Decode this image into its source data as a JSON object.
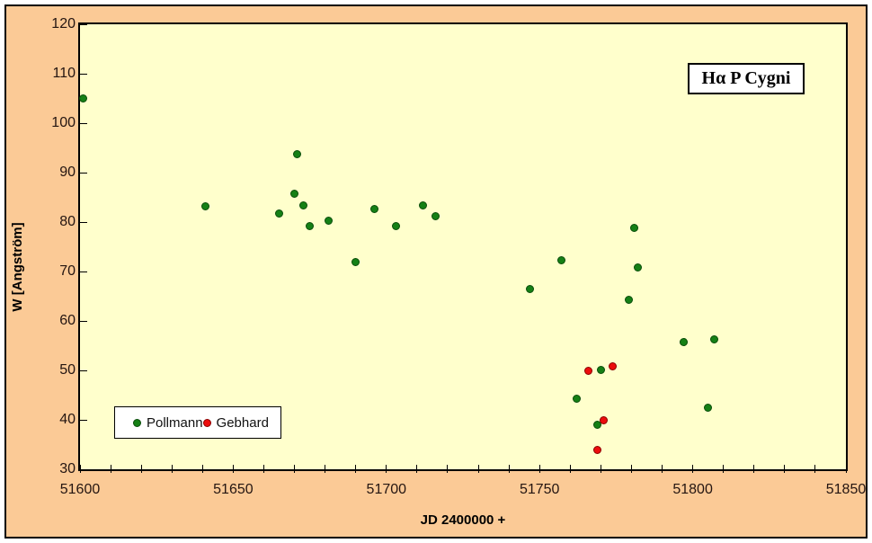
{
  "colors": {
    "page_background": "#FFFFFF",
    "chart_background": "#FBCA96",
    "plot_background": "#FFFFCC",
    "axis_text": "#241511",
    "pollmann_green": "#158015",
    "gebhard_red": "#EC0C0C"
  },
  "legend": {
    "entries": [
      {
        "label": "Pollmann",
        "color": "#158015"
      },
      {
        "label": "Gebhard",
        "color": "#EC0C0C"
      }
    ]
  },
  "chart_data": {
    "type": "scatter",
    "title": "Hα P Cygni",
    "xlabel": "JD 2400000 +",
    "ylabel": "W [Angström]",
    "xlim": [
      51600,
      51850
    ],
    "ylim": [
      30,
      120
    ],
    "x_major_ticks": [
      51600,
      51650,
      51700,
      51750,
      51800,
      51850
    ],
    "x_minor_tick_step": 10,
    "y_ticks": [
      30,
      40,
      50,
      60,
      70,
      80,
      90,
      100,
      110,
      120
    ],
    "grid": false,
    "legend_position": "inside bottom-left",
    "series": [
      {
        "name": "Pollmann",
        "color": "#158015",
        "marker_border": "#0A4D0A",
        "points": [
          [
            51601,
            105
          ],
          [
            51641,
            83.2
          ],
          [
            51665,
            81.8
          ],
          [
            51670,
            85.8
          ],
          [
            51671,
            93.7
          ],
          [
            51673,
            83.3
          ],
          [
            51675,
            79.1
          ],
          [
            51681,
            80.2
          ],
          [
            51690,
            72
          ],
          [
            51696,
            82.6
          ],
          [
            51703,
            79.1
          ],
          [
            51712,
            83.3
          ],
          [
            51716,
            81.2
          ],
          [
            51747,
            66.5
          ],
          [
            51757,
            72.2
          ],
          [
            51762,
            44.2
          ],
          [
            51769,
            39
          ],
          [
            51770,
            50.1
          ],
          [
            51779,
            64.3
          ],
          [
            51781,
            78.8
          ],
          [
            51782,
            70.9
          ],
          [
            51797,
            55.8
          ],
          [
            51805,
            42.4
          ],
          [
            51807,
            56.2
          ]
        ]
      },
      {
        "name": "Gebhard",
        "color": "#EC0C0C",
        "marker_border": "#8B0000",
        "points": [
          [
            51766,
            50
          ],
          [
            51769,
            34
          ],
          [
            51771,
            40
          ],
          [
            51774,
            50.8
          ]
        ]
      }
    ]
  }
}
